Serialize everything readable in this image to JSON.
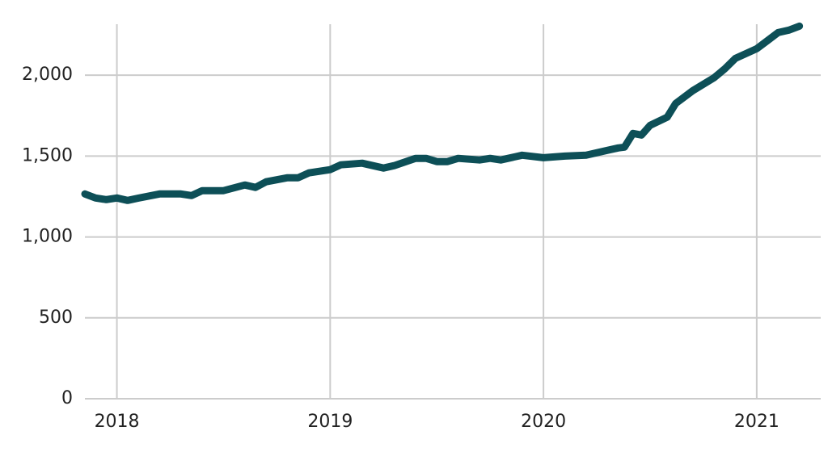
{
  "chart_data": {
    "type": "line",
    "x": [
      2017.85,
      2017.9,
      2017.95,
      2018.0,
      2018.05,
      2018.1,
      2018.2,
      2018.3,
      2018.35,
      2018.4,
      2018.5,
      2018.6,
      2018.65,
      2018.7,
      2018.8,
      2018.85,
      2018.9,
      2019.0,
      2019.05,
      2019.15,
      2019.2,
      2019.25,
      2019.3,
      2019.4,
      2019.45,
      2019.5,
      2019.55,
      2019.6,
      2019.7,
      2019.75,
      2019.8,
      2019.9,
      2020.0,
      2020.1,
      2020.2,
      2020.3,
      2020.35,
      2020.38,
      2020.42,
      2020.46,
      2020.5,
      2020.58,
      2020.62,
      2020.7,
      2020.8,
      2020.85,
      2020.9,
      2021.0,
      2021.05,
      2021.1,
      2021.15,
      2021.2
    ],
    "values": [
      1266,
      1241,
      1231,
      1241,
      1226,
      1240,
      1266,
      1266,
      1256,
      1286,
      1286,
      1321,
      1306,
      1341,
      1366,
      1366,
      1396,
      1416,
      1446,
      1456,
      1441,
      1426,
      1441,
      1486,
      1486,
      1466,
      1466,
      1486,
      1476,
      1486,
      1476,
      1505,
      1490,
      1500,
      1505,
      1535,
      1550,
      1555,
      1640,
      1630,
      1690,
      1740,
      1825,
      1904,
      1984,
      2039,
      2104,
      2164,
      2213,
      2263,
      2278,
      2303
    ],
    "color": "#0d4f57",
    "xlim": [
      2017.85,
      2021.3
    ],
    "xticks": [
      2018,
      2019,
      2020,
      2021
    ],
    "ylim": [
      0,
      2315
    ],
    "yticks": [
      0,
      500,
      {
        "value": 1000,
        "label": "1,000"
      },
      {
        "value": 1500,
        "label": "1,500"
      },
      {
        "value": 2000,
        "label": "2,000"
      }
    ],
    "grid": true
  }
}
